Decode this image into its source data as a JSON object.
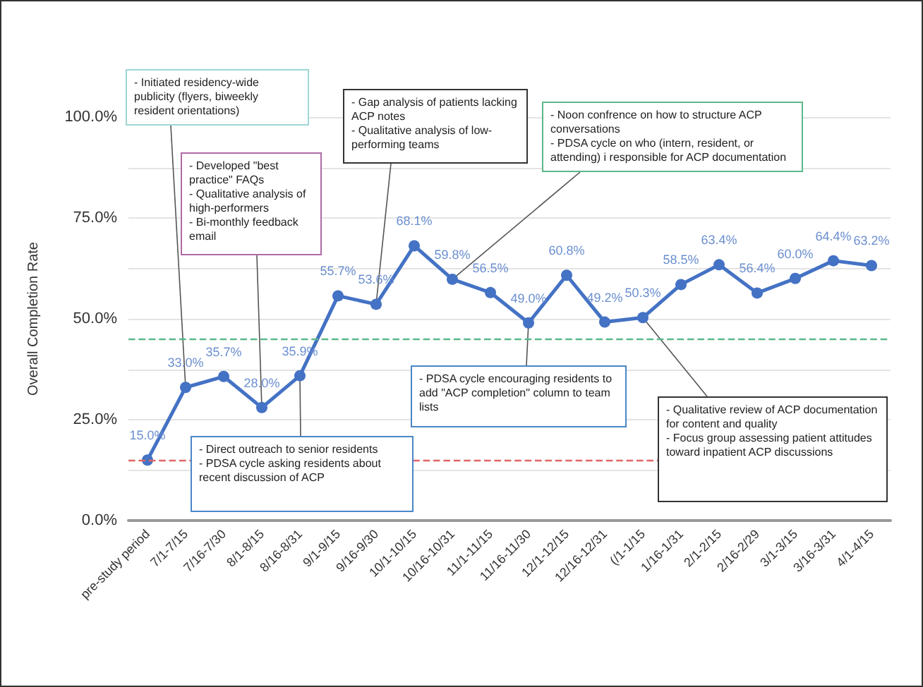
{
  "chart_data": {
    "type": "line",
    "ylabel": "Overall Completion Rate",
    "categories": [
      "pre-study period",
      "7/1-7/15",
      "7/16-7/30",
      "8/1-8/15",
      "8/16-8/31",
      "9/1-9/15",
      "9/16-9/30",
      "10/1-10/15",
      "10/16-10/31",
      "11/1-11/15",
      "11/16-11/30",
      "12/1-12/15",
      "12/16-12/31",
      "(/1-1/15",
      "1/16-1/31",
      "2/1-2/15",
      "2/16-2/29",
      "3/1-3/15",
      "3/16-3/31",
      "4/1-4/15"
    ],
    "series": [
      {
        "color": "#4472c4",
        "values": [
          15.0,
          33.0,
          35.7,
          28.0,
          35.9,
          55.7,
          53.6,
          68.1,
          59.8,
          56.5,
          49.0,
          60.8,
          49.2,
          50.3,
          58.5,
          63.4,
          56.4,
          60.0,
          64.4,
          63.2
        ],
        "value_labels": [
          "15.0%",
          "33.0%",
          "35.7%",
          "28.0%",
          "35.9%",
          "55.7%",
          "53.6%",
          "68.1%",
          "59.8%",
          "56.5%",
          "49.0%",
          "60.8%",
          "49.2%",
          "50.3%",
          "58.5%",
          "63.4%",
          "56.4%",
          "60.0%",
          "64.4%",
          "63.2%"
        ]
      }
    ],
    "ylim": [
      0,
      100
    ],
    "yticks": [
      {
        "value": 0,
        "label": "0.0%"
      },
      {
        "value": 12.5,
        "label": null
      },
      {
        "value": 25,
        "label": "25.0%"
      },
      {
        "value": 37.5,
        "label": null
      },
      {
        "value": 50,
        "label": "50.0%"
      },
      {
        "value": 62.5,
        "label": null
      },
      {
        "value": 75,
        "label": "75.0%"
      },
      {
        "value": 87.5,
        "label": null
      },
      {
        "value": 100,
        "label": "100.0%"
      }
    ],
    "grid": "y",
    "marker": "circle",
    "line_style": "solid",
    "ref_lines": [
      {
        "axis": "y",
        "value": 15,
        "color": "#e06666",
        "line_style": "dashed"
      },
      {
        "axis": "y",
        "value": 45,
        "color": "#5cb88a",
        "line_style": "dashed"
      }
    ],
    "annotations": [
      {
        "text": "- Initiated residency-wide publicity (flyers, biweekly resident orientations)",
        "x": "7/1-7/15",
        "y": 33.0
      },
      {
        "text": "- Developed \"best practice\" FAQs\n- Qualitative analysis of high-performers\n- Bi-monthly feedback email",
        "x": "8/1-8/15",
        "y": 28.0
      },
      {
        "text": "- Gap analysis of patients lacking ACP notes\n- Qualitative analysis of low-performing teams",
        "x": "9/16-9/30",
        "y": 53.6
      },
      {
        "text": "- Noon confrence on how to structure ACP conversations\n- PDSA cycle on who (intern, resident, or attending) i responsible for ACP documentation",
        "x": "10/16-10/31",
        "y": 59.8
      },
      {
        "text": "- PDSA cycle encouraging residents to add \"ACP completion\" column to team lists",
        "x": "11/16-11/30",
        "y": 49.0
      },
      {
        "text": "- Qualitative review of ACP documentation for content and quality\n- Focus group assessing patient attitudes toward inpatient ACP discussions",
        "x": "(/1-1/15",
        "y": 50.3
      },
      {
        "text": "- Direct outreach to senior residents\n- PDSA cycle asking residents about recent discussion of ACP",
        "x": "8/16-8/31",
        "y": 35.9
      }
    ]
  }
}
